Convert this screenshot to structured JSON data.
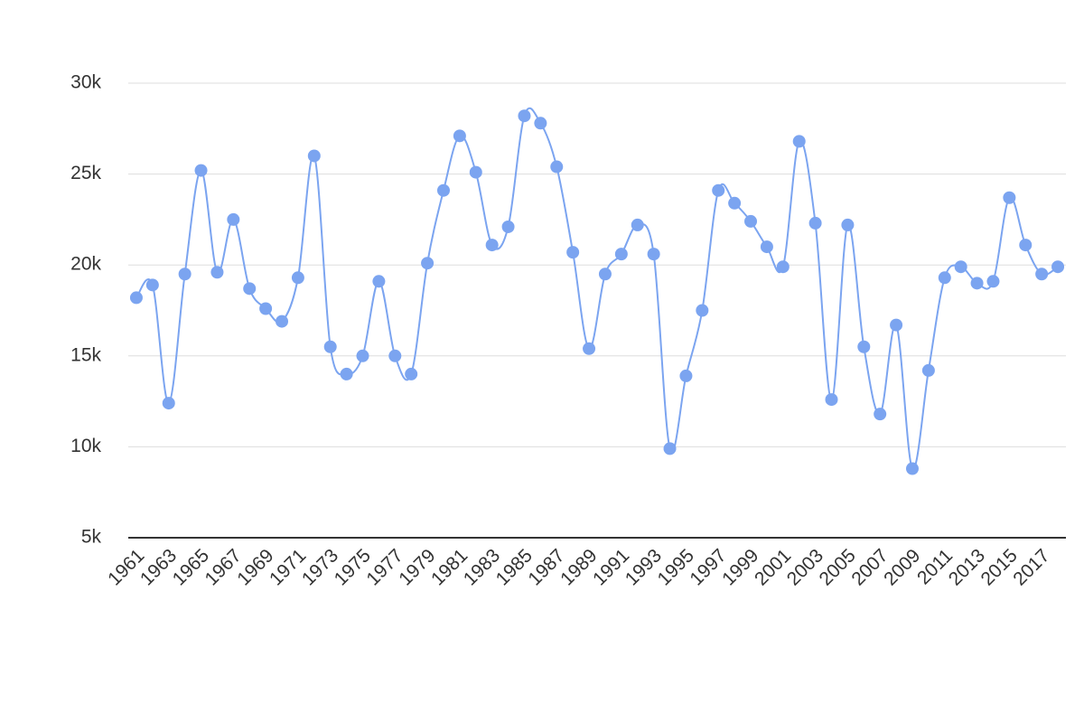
{
  "chart_data": {
    "type": "line",
    "x": [
      1961,
      1962,
      1963,
      1964,
      1965,
      1966,
      1967,
      1968,
      1969,
      1970,
      1971,
      1972,
      1973,
      1974,
      1975,
      1976,
      1977,
      1978,
      1979,
      1980,
      1981,
      1982,
      1983,
      1984,
      1985,
      1986,
      1987,
      1988,
      1989,
      1990,
      1991,
      1992,
      1993,
      1994,
      1995,
      1996,
      1997,
      1998,
      1999,
      2000,
      2001,
      2002,
      2003,
      2004,
      2005,
      2006,
      2007,
      2008,
      2009,
      2010,
      2011,
      2012,
      2013,
      2014,
      2015,
      2016,
      2017,
      2018
    ],
    "values": [
      18200,
      18900,
      12400,
      19500,
      25200,
      19600,
      22500,
      18700,
      17600,
      16900,
      19300,
      26000,
      15500,
      14000,
      15000,
      19100,
      15000,
      14000,
      20100,
      24100,
      27100,
      25100,
      21100,
      22100,
      28200,
      27800,
      25400,
      20700,
      15400,
      19500,
      20600,
      22200,
      20600,
      9900,
      13900,
      17500,
      24100,
      23400,
      22400,
      21000,
      19900,
      26800,
      22300,
      12600,
      22200,
      15500,
      11800,
      16700,
      8800,
      14200,
      19300,
      19900,
      19000,
      19100,
      23700,
      21100,
      19500,
      19900
    ],
    "color": "#7ba4f0",
    "xlim": [
      1960.5,
      2018.5
    ],
    "xticks": [
      1961,
      1963,
      1965,
      1967,
      1969,
      1971,
      1973,
      1975,
      1977,
      1979,
      1981,
      1983,
      1985,
      1987,
      1989,
      1991,
      1993,
      1995,
      1997,
      1999,
      2001,
      2003,
      2005,
      2007,
      2009,
      2011,
      2013,
      2015,
      2017
    ],
    "ylim": [
      5000,
      30000
    ],
    "yticks": [
      {
        "value": 5000,
        "label": "5k"
      },
      {
        "value": 10000,
        "label": "10k"
      },
      {
        "value": 15000,
        "label": "15k"
      },
      {
        "value": 20000,
        "label": "20k"
      },
      {
        "value": 25000,
        "label": "25k"
      },
      {
        "value": 30000,
        "label": "30k"
      }
    ],
    "grid": true,
    "smooth": true
  }
}
